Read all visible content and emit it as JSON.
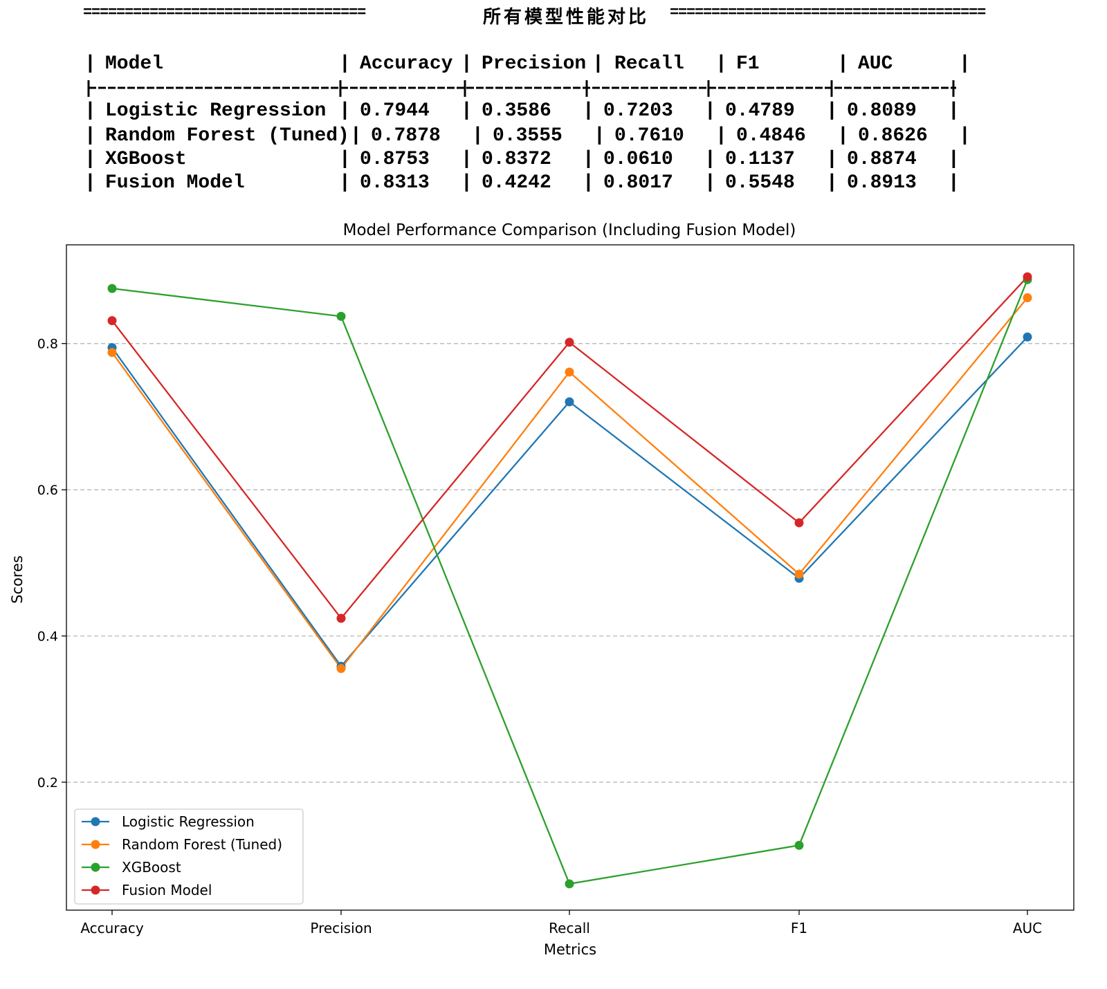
{
  "banner": {
    "title": "所有模型性能对比",
    "left_rule": "==================================",
    "right_rule": "======================================"
  },
  "table": {
    "header": [
      "Model",
      "Accuracy",
      "Precision",
      "Recall",
      "F1",
      "AUC"
    ],
    "separator": "|----------------------|----------|----------|----------|----------|----------|",
    "rows": [
      [
        "Logistic Regression",
        "0.7944",
        "0.3586",
        "0.7203",
        "0.4789",
        "0.8089"
      ],
      [
        "Random Forest (Tuned)",
        "0.7878",
        "0.3555",
        "0.7610",
        "0.4846",
        "0.8626"
      ],
      [
        "XGBoost",
        "0.8753",
        "0.8372",
        "0.0610",
        "0.1137",
        "0.8874"
      ],
      [
        "Fusion Model",
        "0.8313",
        "0.4242",
        "0.8017",
        "0.5548",
        "0.8913"
      ]
    ]
  },
  "chart_data": {
    "type": "line",
    "title": "Model Performance Comparison (Including Fusion Model)",
    "xlabel": "Metrics",
    "ylabel": "Scores",
    "categories": [
      "Accuracy",
      "Precision",
      "Recall",
      "F1",
      "AUC"
    ],
    "ylim": [
      0.025,
      0.935
    ],
    "yticks": [
      0.2,
      0.4,
      0.6,
      0.8
    ],
    "ytick_labels": [
      "0.2",
      "0.4",
      "0.6",
      "0.8"
    ],
    "grid": "y-dashed",
    "legend_position": "lower-left",
    "series": [
      {
        "name": "Logistic Regression",
        "color": "#1f77b4",
        "values": [
          0.7944,
          0.3586,
          0.7203,
          0.4789,
          0.8089
        ]
      },
      {
        "name": "Random Forest (Tuned)",
        "color": "#ff7f0e",
        "values": [
          0.7878,
          0.3555,
          0.761,
          0.4846,
          0.8626
        ]
      },
      {
        "name": "XGBoost",
        "color": "#2ca02c",
        "values": [
          0.8753,
          0.8372,
          0.061,
          0.1137,
          0.8874
        ]
      },
      {
        "name": "Fusion Model",
        "color": "#d62728",
        "values": [
          0.8313,
          0.4242,
          0.8017,
          0.5548,
          0.8913
        ]
      }
    ]
  }
}
